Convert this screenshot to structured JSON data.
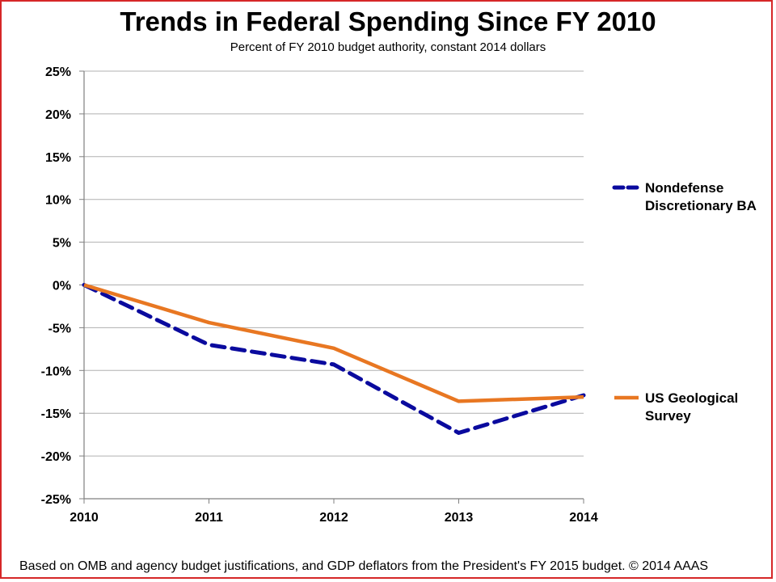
{
  "chart_data": {
    "type": "line",
    "title": "Trends in Federal Spending Since FY 2010",
    "subtitle": "Percent of FY 2010 budget authority, constant 2014 dollars",
    "x": [
      "2010",
      "2011",
      "2012",
      "2013",
      "2014"
    ],
    "yticks": [
      "25%",
      "20%",
      "15%",
      "10%",
      "5%",
      "0%",
      "-5%",
      "-10%",
      "-15%",
      "-20%",
      "-25%"
    ],
    "ylim": [
      -25,
      25
    ],
    "grid": true,
    "legend_position": "right",
    "series": [
      {
        "name_lines": [
          "Nondefense",
          "Discretionary BA"
        ],
        "values": [
          0,
          -7.0,
          -9.3,
          -17.3,
          -12.9
        ],
        "color": "#0a0a9e",
        "style": "dashed"
      },
      {
        "name_lines": [
          "US Geological",
          "Survey"
        ],
        "values": [
          0,
          -4.4,
          -7.4,
          -13.6,
          -13.1
        ],
        "color": "#e87722",
        "style": "solid"
      }
    ]
  },
  "footnote": "Based on OMB and agency budget justifications, and GDP deflators from the President's FY 2015 budget. © 2014 AAAS"
}
